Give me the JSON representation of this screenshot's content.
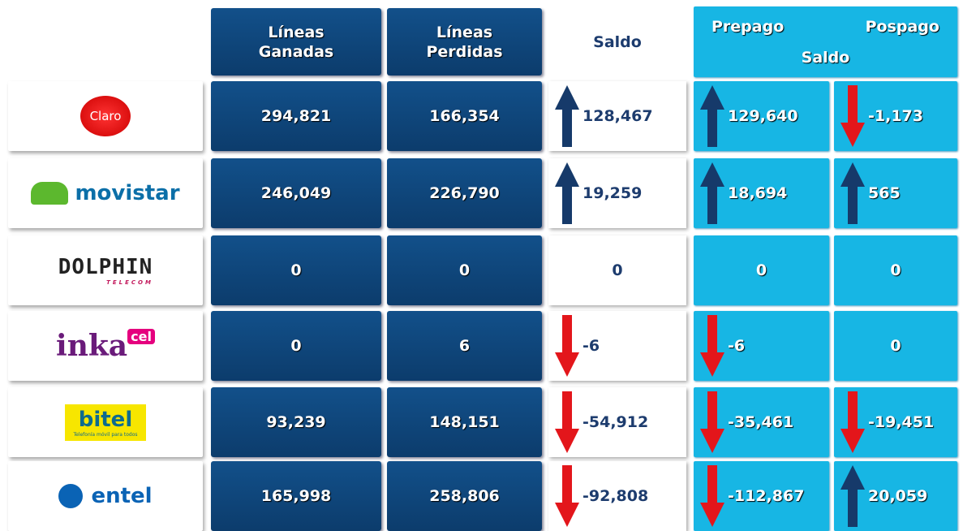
{
  "header": {
    "ganadas": "Líneas Ganadas",
    "perdidas": "Líneas Perdidas",
    "saldo": "Saldo",
    "prepago": "Prepago",
    "pospago": "Pospago",
    "saldo_group": "Saldo"
  },
  "rows": [
    {
      "logo": {
        "text": "Claro"
      },
      "ganadas": "294,821",
      "perdidas": "166,354",
      "saldo": "128,467",
      "prepago": "129,640",
      "pospago": "-1,173"
    },
    {
      "logo": {
        "text": "movistar"
      },
      "ganadas": "246,049",
      "perdidas": "226,790",
      "saldo": "19,259",
      "prepago": "18,694",
      "pospago": "565"
    },
    {
      "logo": {
        "text": "DOLPHIN",
        "sub": "TELECOM"
      },
      "ganadas": "0",
      "perdidas": "0",
      "saldo": "0",
      "prepago": "0",
      "pospago": "0"
    },
    {
      "logo": {
        "text": "inka",
        "sub": "cel"
      },
      "ganadas": "0",
      "perdidas": "6",
      "saldo": "-6",
      "prepago": "-6",
      "pospago": "0"
    },
    {
      "logo": {
        "text": "bitel",
        "sub": "Telefonía móvil para todos"
      },
      "ganadas": "93,239",
      "perdidas": "148,151",
      "saldo": "-54,912",
      "prepago": "-35,461",
      "pospago": "-19,451"
    },
    {
      "logo": {
        "text": "entel"
      },
      "ganadas": "165,998",
      "perdidas": "258,806",
      "saldo": "-92,808",
      "prepago": "-112,867",
      "pospago": "20,059"
    }
  ]
}
